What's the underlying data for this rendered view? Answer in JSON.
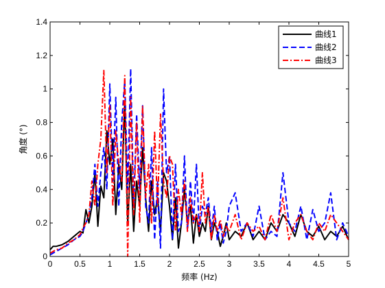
{
  "chart_data": {
    "type": "line",
    "title": "",
    "xlabel": "频率 (Hz)",
    "ylabel": "角度 (°)",
    "xlim": [
      0,
      5
    ],
    "ylim": [
      0,
      1.4
    ],
    "xticks": [
      "0",
      "0.5",
      "1",
      "1.5",
      "2",
      "2.5",
      "3",
      "3.5",
      "4",
      "4.5",
      "5"
    ],
    "yticks": [
      "0",
      "0.2",
      "0.4",
      "0.6",
      "0.8",
      "1",
      "1.2",
      "1.4"
    ],
    "grid": false,
    "legend_position": "top-right",
    "series": [
      {
        "name": "曲线1",
        "color": "#000000",
        "dash": "solid",
        "x": [
          0,
          0.05,
          0.1,
          0.2,
          0.3,
          0.4,
          0.5,
          0.55,
          0.6,
          0.65,
          0.7,
          0.75,
          0.8,
          0.85,
          0.9,
          0.95,
          1.0,
          1.05,
          1.1,
          1.15,
          1.2,
          1.25,
          1.3,
          1.35,
          1.4,
          1.45,
          1.5,
          1.55,
          1.6,
          1.65,
          1.7,
          1.75,
          1.8,
          1.85,
          1.9,
          1.95,
          2.0,
          2.05,
          2.1,
          2.15,
          2.2,
          2.25,
          2.3,
          2.35,
          2.4,
          2.45,
          2.5,
          2.55,
          2.6,
          2.65,
          2.7,
          2.75,
          2.8,
          2.85,
          2.9,
          2.95,
          3.0,
          3.1,
          3.2,
          3.3,
          3.4,
          3.5,
          3.6,
          3.7,
          3.8,
          3.9,
          4.0,
          4.1,
          4.2,
          4.3,
          4.4,
          4.5,
          4.6,
          4.7,
          4.8,
          4.9,
          5.0
        ],
        "y": [
          0.04,
          0.06,
          0.06,
          0.07,
          0.09,
          0.12,
          0.15,
          0.14,
          0.28,
          0.2,
          0.3,
          0.5,
          0.18,
          0.42,
          0.35,
          0.75,
          0.55,
          0.7,
          0.25,
          0.55,
          0.4,
          0.92,
          0.2,
          0.55,
          0.15,
          0.45,
          0.3,
          0.65,
          0.35,
          0.15,
          0.45,
          0.25,
          0.35,
          0.15,
          0.5,
          0.45,
          0.3,
          0.1,
          0.35,
          0.05,
          0.2,
          0.4,
          0.2,
          0.3,
          0.08,
          0.25,
          0.12,
          0.2,
          0.15,
          0.3,
          0.1,
          0.2,
          0.15,
          0.06,
          0.12,
          0.2,
          0.1,
          0.15,
          0.12,
          0.2,
          0.1,
          0.15,
          0.1,
          0.2,
          0.15,
          0.25,
          0.2,
          0.12,
          0.25,
          0.15,
          0.12,
          0.18,
          0.1,
          0.15,
          0.12,
          0.18,
          0.1
        ]
      },
      {
        "name": "曲线2",
        "color": "#0000ff",
        "dash": "dashed",
        "x": [
          0,
          0.05,
          0.1,
          0.2,
          0.3,
          0.4,
          0.5,
          0.55,
          0.6,
          0.65,
          0.7,
          0.75,
          0.8,
          0.85,
          0.9,
          0.95,
          1.0,
          1.05,
          1.1,
          1.15,
          1.2,
          1.25,
          1.3,
          1.35,
          1.4,
          1.45,
          1.5,
          1.55,
          1.6,
          1.65,
          1.7,
          1.75,
          1.8,
          1.85,
          1.9,
          1.95,
          2.0,
          2.05,
          2.1,
          2.15,
          2.2,
          2.25,
          2.3,
          2.35,
          2.4,
          2.45,
          2.5,
          2.55,
          2.6,
          2.65,
          2.7,
          2.75,
          2.8,
          2.85,
          2.9,
          2.95,
          3.0,
          3.1,
          3.2,
          3.3,
          3.4,
          3.5,
          3.6,
          3.7,
          3.8,
          3.9,
          4.0,
          4.1,
          4.2,
          4.3,
          4.4,
          4.5,
          4.6,
          4.7,
          4.8,
          4.9,
          5.0
        ],
        "y": [
          0.01,
          0.02,
          0.03,
          0.05,
          0.07,
          0.1,
          0.12,
          0.15,
          0.2,
          0.25,
          0.35,
          0.55,
          0.3,
          0.5,
          0.65,
          0.4,
          1.03,
          0.45,
          0.95,
          0.3,
          0.8,
          1.05,
          0.4,
          1.12,
          0.3,
          0.85,
          0.4,
          0.9,
          0.3,
          0.2,
          0.65,
          0.1,
          0.45,
          0.05,
          1.0,
          0.5,
          0.6,
          0.1,
          0.55,
          0.15,
          0.2,
          0.6,
          0.15,
          0.45,
          0.2,
          0.55,
          0.15,
          0.3,
          0.25,
          0.35,
          0.15,
          0.3,
          0.1,
          0.2,
          0.08,
          0.15,
          0.3,
          0.38,
          0.15,
          0.2,
          0.12,
          0.3,
          0.1,
          0.15,
          0.12,
          0.5,
          0.2,
          0.15,
          0.3,
          0.1,
          0.28,
          0.15,
          0.2,
          0.38,
          0.1,
          0.2,
          0.12
        ]
      },
      {
        "name": "曲线3",
        "color": "#ff0000",
        "dash": "dashdot",
        "x": [
          0,
          0.05,
          0.1,
          0.2,
          0.3,
          0.4,
          0.5,
          0.55,
          0.6,
          0.65,
          0.7,
          0.75,
          0.8,
          0.85,
          0.9,
          0.95,
          1.0,
          1.05,
          1.1,
          1.15,
          1.2,
          1.25,
          1.3,
          1.35,
          1.4,
          1.45,
          1.5,
          1.55,
          1.6,
          1.65,
          1.7,
          1.75,
          1.8,
          1.85,
          1.9,
          1.95,
          2.0,
          2.05,
          2.1,
          2.15,
          2.2,
          2.25,
          2.3,
          2.35,
          2.4,
          2.45,
          2.5,
          2.55,
          2.6,
          2.65,
          2.7,
          2.75,
          2.8,
          2.85,
          2.9,
          2.95,
          3.0,
          3.1,
          3.2,
          3.3,
          3.4,
          3.5,
          3.6,
          3.7,
          3.8,
          3.9,
          4.0,
          4.1,
          4.2,
          4.3,
          4.4,
          4.5,
          4.6,
          4.7,
          4.8,
          4.9,
          5.0
        ],
        "y": [
          0.02,
          0.03,
          0.04,
          0.05,
          0.08,
          0.1,
          0.13,
          0.17,
          0.2,
          0.25,
          0.45,
          0.3,
          0.55,
          0.7,
          1.11,
          0.5,
          0.9,
          0.3,
          0.75,
          0.55,
          0.45,
          1.08,
          0.0,
          0.95,
          0.25,
          0.8,
          0.2,
          0.9,
          0.35,
          0.55,
          0.2,
          0.75,
          0.3,
          0.85,
          0.45,
          0.35,
          0.6,
          0.55,
          0.15,
          0.4,
          0.25,
          0.45,
          0.15,
          0.35,
          0.2,
          0.25,
          0.15,
          0.5,
          0.2,
          0.3,
          0.1,
          0.25,
          0.15,
          0.22,
          0.12,
          0.18,
          0.15,
          0.25,
          0.1,
          0.2,
          0.15,
          0.18,
          0.1,
          0.25,
          0.15,
          0.35,
          0.1,
          0.2,
          0.25,
          0.15,
          0.1,
          0.2,
          0.15,
          0.25,
          0.2,
          0.15,
          0.1
        ]
      }
    ]
  }
}
